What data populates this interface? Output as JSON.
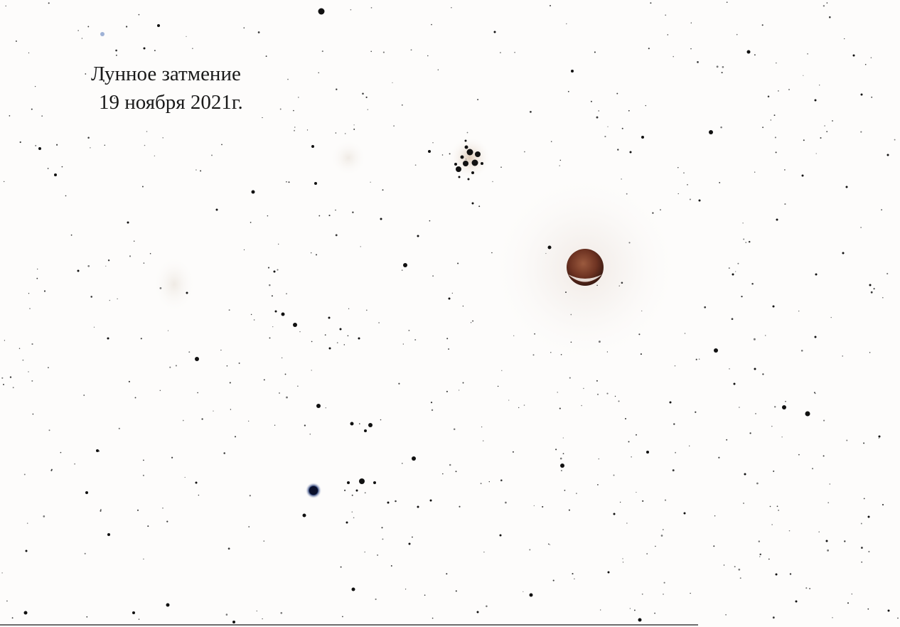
{
  "caption": {
    "line1": "Лунное затмение",
    "line2": "19 ноября 2021г."
  },
  "colors": {
    "background": "#fdfcfb",
    "star": "#111111",
    "moon": "#7a3c26",
    "blue_star": "#1b2f66"
  }
}
